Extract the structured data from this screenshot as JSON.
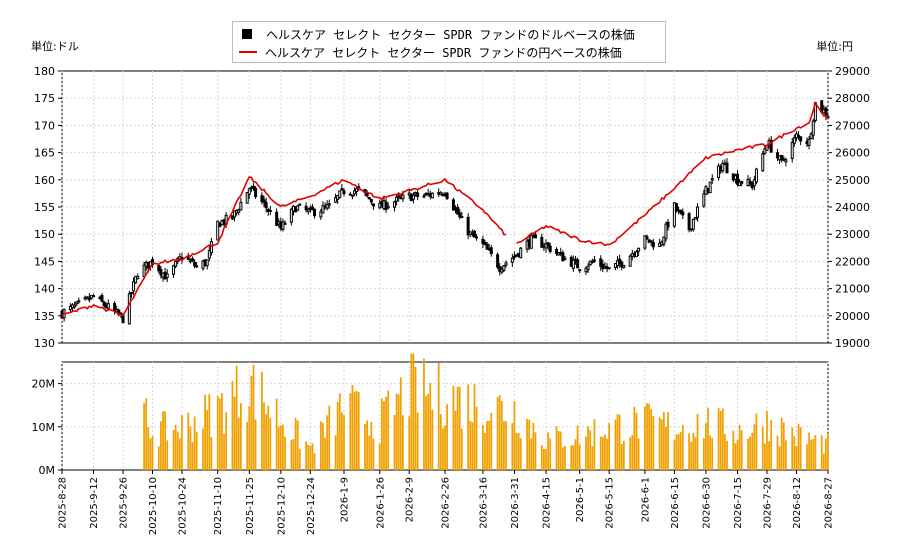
{
  "legend": {
    "dollar_label": "ヘルスケア セレクト セクター SPDR ファンドのドルベースの株価",
    "yen_label": "ヘルスケア セレクト セクター SPDR ファンドの円ベースの株価"
  },
  "units": {
    "left": "単位:ドル",
    "right": "単位:円"
  },
  "colors": {
    "candle": "#000000",
    "yen_line": "#e00000",
    "volume": "#f0a000",
    "grid": "#d8d8d8"
  },
  "chart_data": [
    {
      "type": "candlestick",
      "y_left": {
        "label": "単位:ドル",
        "range": [
          130,
          180
        ],
        "ticks": [
          130,
          135,
          140,
          145,
          150,
          155,
          160,
          165,
          170,
          175,
          180
        ]
      },
      "y_right": {
        "label": "単位:円",
        "range": [
          19000,
          29000
        ],
        "ticks": [
          19000,
          20000,
          21000,
          22000,
          23000,
          24000,
          25000,
          26000,
          27000,
          28000,
          29000
        ]
      },
      "x_tick_labels": [
        "2025-8-28",
        "2025-9-12",
        "2025-9-26",
        "2025-10-10",
        "2025-10-24",
        "2025-11-10",
        "2025-11-25",
        "2025-12-10",
        "2025-12-24",
        "2026-1-9",
        "2026-1-26",
        "2026-2-9",
        "2026-2-26",
        "2026-3-16",
        "2026-3-31",
        "2026-4-15",
        "2026-5-1",
        "2026-5-15",
        "2026-6-1",
        "2026-6-15",
        "2026-6-30",
        "2026-7-15",
        "2026-7-29",
        "2026-8-12",
        "2026-8-27"
      ],
      "dollar_close_keypoints": [
        [
          "2025-8-28",
          135.5
        ],
        [
          "2025-9-5",
          137
        ],
        [
          "2025-9-12",
          138.5
        ],
        [
          "2025-9-19",
          136.5
        ],
        [
          "2025-9-26",
          134.5
        ],
        [
          "2025-10-3",
          143
        ],
        [
          "2025-10-10",
          145
        ],
        [
          "2025-10-17",
          142
        ],
        [
          "2025-10-24",
          146
        ],
        [
          "2025-10-31",
          144
        ],
        [
          "2025-11-5",
          145
        ],
        [
          "2025-11-10",
          152
        ],
        [
          "2025-11-17",
          153
        ],
        [
          "2025-11-25",
          158.5
        ],
        [
          "2025-12-3",
          155
        ],
        [
          "2025-12-10",
          151
        ],
        [
          "2025-12-17",
          155
        ],
        [
          "2025-12-24",
          154
        ],
        [
          "2026-1-2",
          155
        ],
        [
          "2026-1-9",
          158
        ],
        [
          "2026-1-16",
          158
        ],
        [
          "2026-1-26",
          155
        ],
        [
          "2026-2-2",
          156
        ],
        [
          "2026-2-9",
          157
        ],
        [
          "2026-2-16",
          157
        ],
        [
          "2026-2-26",
          158
        ],
        [
          "2026-3-5",
          153
        ],
        [
          "2026-3-10",
          150
        ],
        [
          "2026-3-16",
          148
        ],
        [
          "2026-3-24",
          144
        ],
        [
          "2026-3-31",
          146
        ],
        [
          "2026-4-8",
          149
        ],
        [
          "2026-4-15",
          148
        ],
        [
          "2026-4-22",
          146
        ],
        [
          "2026-5-1",
          144
        ],
        [
          "2026-5-8",
          145
        ],
        [
          "2026-5-15",
          143.5
        ],
        [
          "2026-5-22",
          145
        ],
        [
          "2026-6-1",
          149
        ],
        [
          "2026-6-8",
          148
        ],
        [
          "2026-6-15",
          155
        ],
        [
          "2026-6-22",
          151
        ],
        [
          "2026-6-30",
          158
        ],
        [
          "2026-7-8",
          163
        ],
        [
          "2026-7-15",
          160
        ],
        [
          "2026-7-22",
          159
        ],
        [
          "2026-7-29",
          167
        ],
        [
          "2026-8-5",
          163
        ],
        [
          "2026-8-12",
          168
        ],
        [
          "2026-8-18",
          167
        ],
        [
          "2026-8-21",
          174
        ],
        [
          "2026-8-27",
          172
        ]
      ],
      "yen_close_keypoints": [
        [
          "2025-8-28",
          20000
        ],
        [
          "2025-9-12",
          20400
        ],
        [
          "2025-9-26",
          20000
        ],
        [
          "2025-10-10",
          21900
        ],
        [
          "2025-10-24",
          22100
        ],
        [
          "2025-11-10",
          22700
        ],
        [
          "2025-11-25",
          25100
        ],
        [
          "2025-12-10",
          24000
        ],
        [
          "2025-12-24",
          24400
        ],
        [
          "2026-1-9",
          25000
        ],
        [
          "2026-1-26",
          24300
        ],
        [
          "2026-2-9",
          24600
        ],
        [
          "2026-2-26",
          25000
        ],
        [
          "2026-3-16",
          23900
        ],
        [
          "2026-3-31",
          22600
        ],
        [
          "2026-4-15",
          23300
        ],
        [
          "2026-5-1",
          22800
        ],
        [
          "2026-5-15",
          22600
        ],
        [
          "2026-6-1",
          23700
        ],
        [
          "2026-6-15",
          24700
        ],
        [
          "2026-6-30",
          25800
        ],
        [
          "2026-7-15",
          26100
        ],
        [
          "2026-7-29",
          26300
        ],
        [
          "2026-8-12",
          26900
        ],
        [
          "2026-8-18",
          27100
        ],
        [
          "2026-8-21",
          27800
        ],
        [
          "2026-8-27",
          27200
        ]
      ],
      "yen_gap": [
        "2026-3-28",
        "2026-4-1"
      ]
    },
    {
      "type": "bar",
      "series_name": "volume",
      "y_range": [
        0,
        25000000
      ],
      "y_tick_labels": [
        "0M",
        "10M",
        "20M"
      ],
      "y_ticks": [
        0,
        10000000,
        20000000
      ],
      "volume_start": "2025-10-6",
      "volume_keypoints": [
        [
          "2025-10-6",
          13000000
        ],
        [
          "2025-10-10",
          9000000
        ],
        [
          "2025-10-24",
          10000000
        ],
        [
          "2025-11-10",
          14000000
        ],
        [
          "2025-11-25",
          20000000
        ],
        [
          "2025-12-10",
          12000000
        ],
        [
          "2025-12-24",
          5000000
        ],
        [
          "2026-1-9",
          15000000
        ],
        [
          "2026-1-26",
          11000000
        ],
        [
          "2026-2-9",
          19000000
        ],
        [
          "2026-2-26",
          17000000
        ],
        [
          "2026-3-16",
          15000000
        ],
        [
          "2026-3-31",
          14000000
        ],
        [
          "2026-4-15",
          7000000
        ],
        [
          "2026-5-1",
          8000000
        ],
        [
          "2026-5-15",
          10000000
        ],
        [
          "2026-6-1",
          11000000
        ],
        [
          "2026-6-15",
          10000000
        ],
        [
          "2026-6-30",
          11000000
        ],
        [
          "2026-7-15",
          9000000
        ],
        [
          "2026-7-29",
          11000000
        ],
        [
          "2026-8-12",
          8000000
        ],
        [
          "2026-8-27",
          6000000
        ]
      ]
    }
  ]
}
